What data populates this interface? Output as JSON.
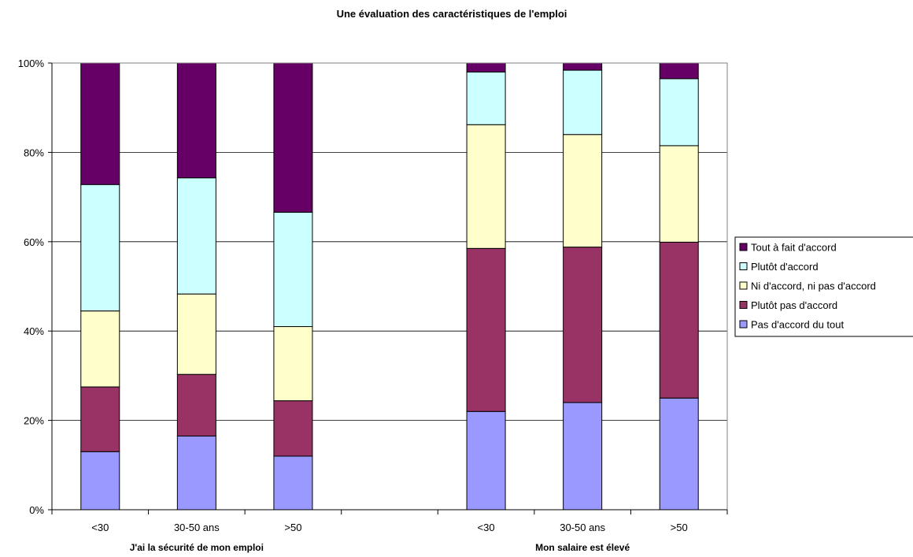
{
  "chart_data": {
    "type": "bar",
    "stacked": true,
    "percent": true,
    "title": "Une évaluation des caractéristiques de l'emploi",
    "ylim": [
      0,
      100
    ],
    "yticks": [
      "0%",
      "20%",
      "40%",
      "60%",
      "80%",
      "100%"
    ],
    "grid": true,
    "legend_position": "right",
    "groups": [
      {
        "label": "J'ai la sécurité de mon emploi",
        "categories": [
          "<30",
          "30-50 ans",
          ">50"
        ]
      },
      {
        "label": "Mon salaire est élevé",
        "categories": [
          "<30",
          "30-50 ans",
          ">50"
        ]
      }
    ],
    "categories": [
      "<30",
      "30-50 ans",
      ">50",
      "",
      "<30",
      "30-50 ans",
      ">50"
    ],
    "series": [
      {
        "name": "Pas d'accord du tout",
        "color": "#9999ff",
        "values": [
          13,
          16.5,
          12,
          null,
          22,
          24,
          25
        ]
      },
      {
        "name": "Plutôt pas d'accord",
        "color": "#993366",
        "values": [
          14.5,
          13.8,
          12.4,
          null,
          36.5,
          34.8,
          34.9
        ]
      },
      {
        "name": "Ni d'accord, ni pas d'accord",
        "color": "#ffffcc",
        "values": [
          17,
          18,
          16.6,
          null,
          27.7,
          25.2,
          21.6
        ]
      },
      {
        "name": "Plutôt d'accord",
        "color": "#ccffff",
        "values": [
          28.3,
          26,
          25.6,
          null,
          11.8,
          14.4,
          15
        ]
      },
      {
        "name": "Tout à fait d'accord",
        "color": "#660066",
        "values": [
          27.2,
          25.7,
          33.4,
          null,
          2,
          1.6,
          3.5
        ]
      }
    ]
  }
}
